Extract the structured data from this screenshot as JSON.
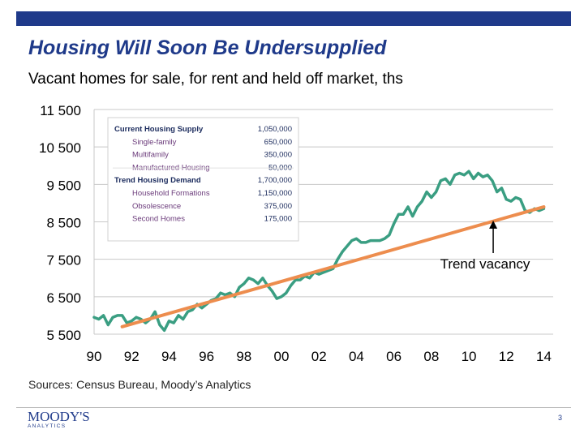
{
  "slide": {
    "title": "Housing Will Soon Be Undersupplied",
    "subtitle": "Vacant homes for sale, for rent and held off market, ths",
    "source": "Sources: Census Bureau, Moody’s Analytics",
    "page_number": "3",
    "logo_text": "MOODY'S",
    "logo_subtext": "ANALYTICS",
    "accent_color": "#1f3a8a"
  },
  "chart_data": {
    "type": "line",
    "title": "Vacant homes for sale, for rent and held off market, ths",
    "xlabel": "",
    "ylabel": "",
    "ylim": [
      5500,
      11500
    ],
    "xlim": [
      1990,
      2014.5
    ],
    "y_ticks": [
      5500,
      6500,
      7500,
      8500,
      9500,
      10500,
      11500
    ],
    "y_tick_labels": [
      "5 500",
      "6 500",
      "7 500",
      "8 500",
      "9 500",
      "10 500",
      "11 500"
    ],
    "x_ticks": [
      1990,
      1992,
      1994,
      1996,
      1998,
      2000,
      2002,
      2004,
      2006,
      2008,
      2010,
      2012,
      2014
    ],
    "x_tick_labels": [
      "90",
      "92",
      "94",
      "96",
      "98",
      "00",
      "02",
      "04",
      "06",
      "08",
      "10",
      "12",
      "14"
    ],
    "grid": true,
    "series": [
      {
        "name": "Vacant homes",
        "color": "#3a9e82",
        "x": [
          1990.0,
          1990.25,
          1990.5,
          1990.75,
          1991.0,
          1991.25,
          1991.5,
          1991.75,
          1992.0,
          1992.25,
          1992.5,
          1992.75,
          1993.0,
          1993.25,
          1993.5,
          1993.75,
          1994.0,
          1994.25,
          1994.5,
          1994.75,
          1995.0,
          1995.25,
          1995.5,
          1995.75,
          1996.0,
          1996.25,
          1996.5,
          1996.75,
          1997.0,
          1997.25,
          1997.5,
          1997.75,
          1998.0,
          1998.25,
          1998.5,
          1998.75,
          1999.0,
          1999.25,
          1999.5,
          1999.75,
          2000.0,
          2000.25,
          2000.5,
          2000.75,
          2001.0,
          2001.25,
          2001.5,
          2001.75,
          2002.0,
          2002.25,
          2002.5,
          2002.75,
          2003.0,
          2003.25,
          2003.5,
          2003.75,
          2004.0,
          2004.25,
          2004.5,
          2004.75,
          2005.0,
          2005.25,
          2005.5,
          2005.75,
          2006.0,
          2006.25,
          2006.5,
          2006.75,
          2007.0,
          2007.25,
          2007.5,
          2007.75,
          2008.0,
          2008.25,
          2008.5,
          2008.75,
          2009.0,
          2009.25,
          2009.5,
          2009.75,
          2010.0,
          2010.25,
          2010.5,
          2010.75,
          2011.0,
          2011.25,
          2011.5,
          2011.75,
          2012.0,
          2012.25,
          2012.5,
          2012.75,
          2013.0,
          2013.25,
          2013.5,
          2013.75,
          2014.0
        ],
        "values": [
          5950,
          5900,
          6000,
          5750,
          5950,
          6000,
          6000,
          5800,
          5850,
          5950,
          5900,
          5800,
          5900,
          6100,
          5750,
          5600,
          5850,
          5800,
          6000,
          5900,
          6100,
          6150,
          6300,
          6200,
          6300,
          6400,
          6450,
          6600,
          6550,
          6600,
          6500,
          6750,
          6850,
          7000,
          6950,
          6850,
          7000,
          6800,
          6650,
          6450,
          6500,
          6600,
          6800,
          6950,
          6950,
          7050,
          7000,
          7150,
          7100,
          7150,
          7200,
          7250,
          7500,
          7700,
          7850,
          8000,
          8050,
          7950,
          7950,
          8000,
          8000,
          8000,
          8050,
          8150,
          8450,
          8700,
          8700,
          8900,
          8650,
          8900,
          9050,
          9300,
          9150,
          9300,
          9600,
          9650,
          9500,
          9750,
          9800,
          9750,
          9850,
          9650,
          9800,
          9700,
          9750,
          9600,
          9300,
          9400,
          9100,
          9050,
          9150,
          9100,
          8800,
          8750,
          8850,
          8800,
          8850
        ]
      }
    ],
    "trend_line": {
      "name": "Trend vacancy",
      "color": "#ed8d4e",
      "x": [
        1991.5,
        2014.0
      ],
      "values": [
        5700,
        8900
      ]
    },
    "annotations": [
      {
        "text": "Trend vacancy",
        "arrow_to_x": 2011.3,
        "arrow_to_y": 8600
      }
    ],
    "inset_table": {
      "rows": [
        {
          "label": "Current Housing Supply",
          "value": "1,050,000",
          "header": true
        },
        {
          "label": "Single-family",
          "value": "650,000",
          "header": false
        },
        {
          "label": "Multifamily",
          "value": "350,000",
          "header": false
        },
        {
          "label": "Manufactured Housing",
          "value": "50,000",
          "header": false
        },
        {
          "label": "Trend Housing Demand",
          "value": "1,700,000",
          "header": true
        },
        {
          "label": "Household Formations",
          "value": "1,150,000",
          "header": false
        },
        {
          "label": "Obsolescence",
          "value": "375,000",
          "header": false
        },
        {
          "label": "Second Homes",
          "value": "175,000",
          "header": false
        }
      ]
    }
  }
}
